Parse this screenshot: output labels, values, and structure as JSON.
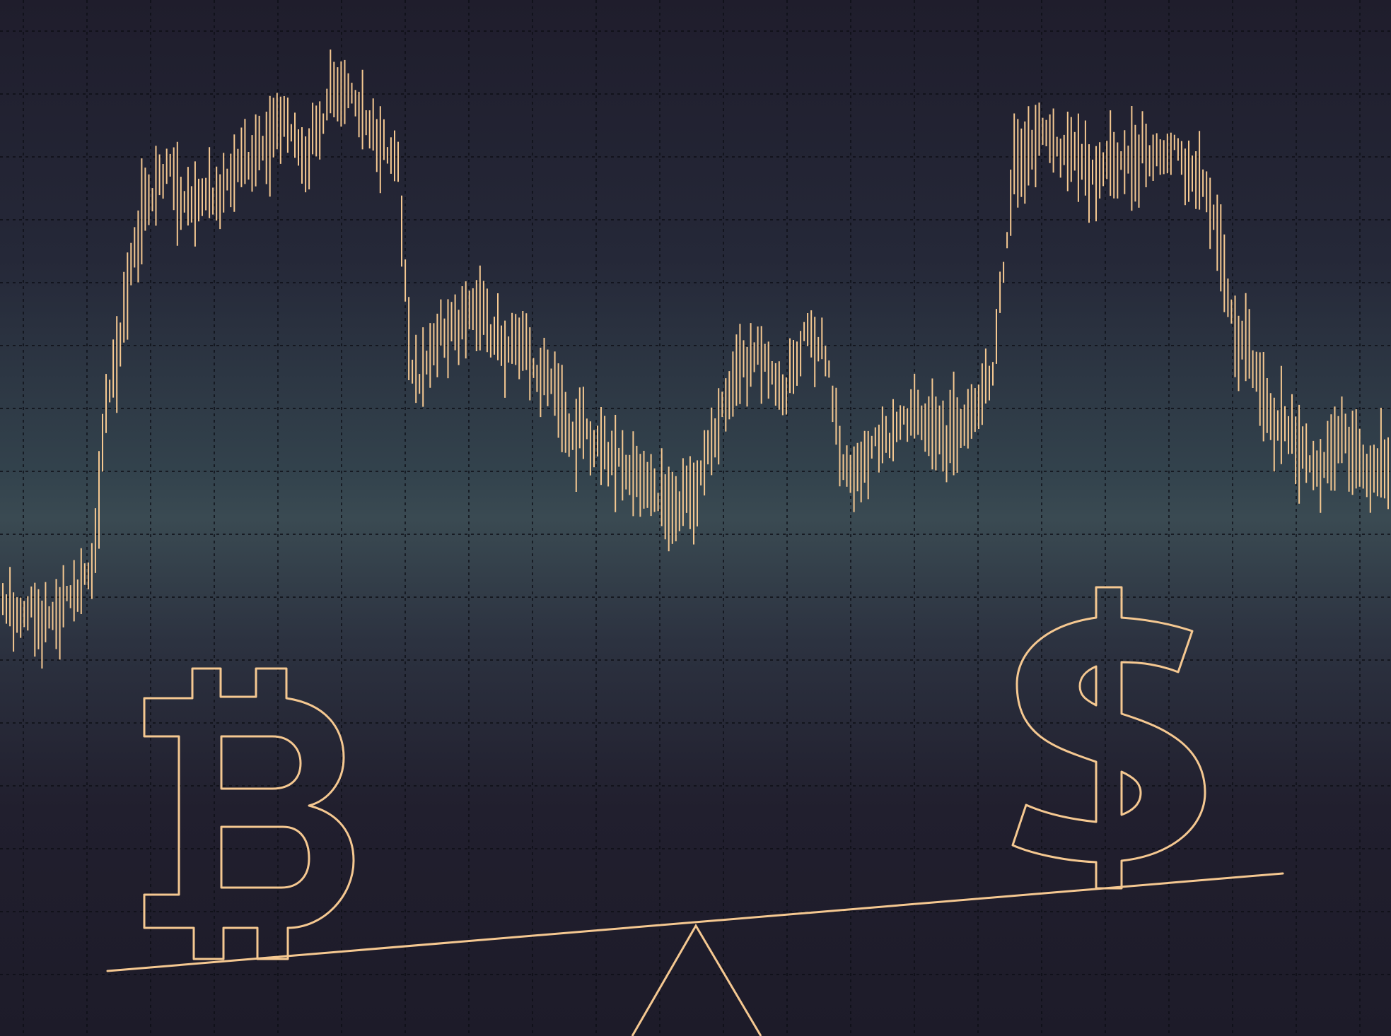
{
  "illustration": {
    "subject": "bitcoin-vs-dollar-balance",
    "symbols": {
      "left_symbol": "bitcoin-icon",
      "right_symbol": "dollar-icon"
    },
    "colors": {
      "stroke": "#f5c891",
      "background_top": "#1f1d2c",
      "background_mid": "#3a4a52",
      "background_bottom": "#1d1b29",
      "grid": "#0c0d14"
    },
    "price_series": {
      "bar_count": 390,
      "seed": 20240517,
      "levels": [
        [
          0.0,
          0.06
        ],
        [
          0.03,
          0.04
        ],
        [
          0.05,
          0.08
        ],
        [
          0.065,
          0.12
        ],
        [
          0.075,
          0.38
        ],
        [
          0.09,
          0.58
        ],
        [
          0.1,
          0.72
        ],
        [
          0.12,
          0.78
        ],
        [
          0.14,
          0.72
        ],
        [
          0.16,
          0.76
        ],
        [
          0.18,
          0.82
        ],
        [
          0.2,
          0.86
        ],
        [
          0.22,
          0.84
        ],
        [
          0.24,
          0.93
        ],
        [
          0.26,
          0.91
        ],
        [
          0.27,
          0.86
        ],
        [
          0.285,
          0.82
        ],
        [
          0.295,
          0.44
        ],
        [
          0.31,
          0.48
        ],
        [
          0.33,
          0.54
        ],
        [
          0.35,
          0.52
        ],
        [
          0.37,
          0.48
        ],
        [
          0.39,
          0.44
        ],
        [
          0.41,
          0.36
        ],
        [
          0.43,
          0.32
        ],
        [
          0.45,
          0.27
        ],
        [
          0.47,
          0.25
        ],
        [
          0.49,
          0.22
        ],
        [
          0.51,
          0.31
        ],
        [
          0.53,
          0.46
        ],
        [
          0.55,
          0.46
        ],
        [
          0.565,
          0.42
        ],
        [
          0.58,
          0.53
        ],
        [
          0.595,
          0.47
        ],
        [
          0.605,
          0.3
        ],
        [
          0.62,
          0.3
        ],
        [
          0.64,
          0.35
        ],
        [
          0.66,
          0.38
        ],
        [
          0.68,
          0.34
        ],
        [
          0.7,
          0.38
        ],
        [
          0.715,
          0.46
        ],
        [
          0.73,
          0.8
        ],
        [
          0.75,
          0.86
        ],
        [
          0.77,
          0.82
        ],
        [
          0.79,
          0.78
        ],
        [
          0.81,
          0.81
        ],
        [
          0.83,
          0.84
        ],
        [
          0.85,
          0.83
        ],
        [
          0.87,
          0.76
        ],
        [
          0.89,
          0.52
        ],
        [
          0.91,
          0.4
        ],
        [
          0.93,
          0.33
        ],
        [
          0.95,
          0.3
        ],
        [
          0.97,
          0.32
        ],
        [
          1.0,
          0.28
        ]
      ]
    }
  }
}
